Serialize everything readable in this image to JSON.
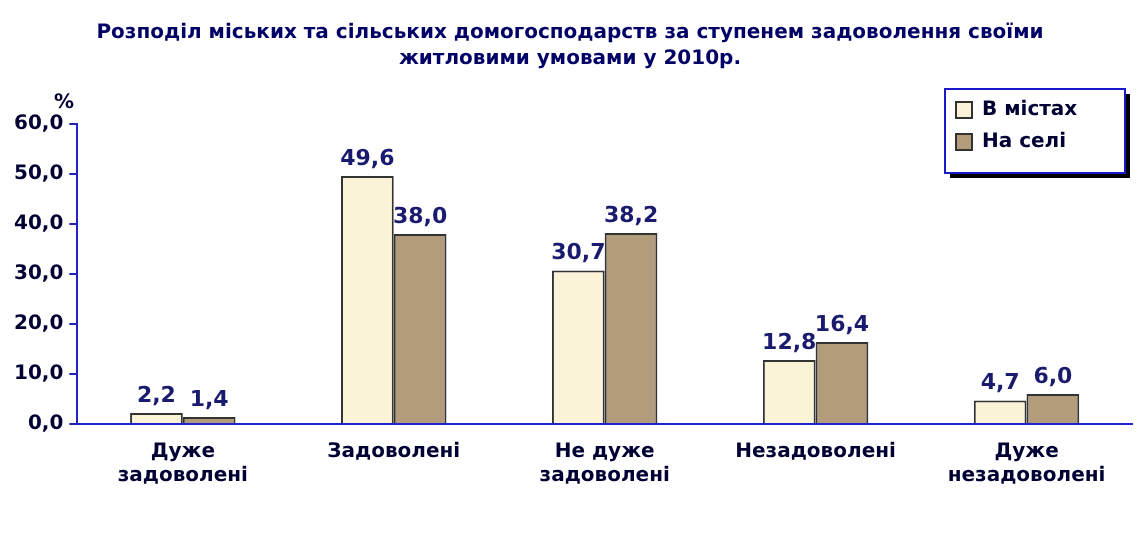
{
  "chart_data": {
    "type": "bar",
    "title": "Розподіл міських та сільських домогосподарств за ступенем задоволення своїми житловими умовами у 2010р.",
    "ylabel": "%",
    "categories": [
      "Дуже задоволені",
      "Задоволені",
      "Не дуже задоволені",
      "Незадоволені",
      "Дуже незадоволені"
    ],
    "series": [
      {
        "name": "В містах",
        "color": "#fbf3d8",
        "values": [
          2.2,
          49.6,
          30.7,
          12.8,
          4.7
        ],
        "value_labels": [
          "2,2",
          "49,6",
          "30,7",
          "12,8",
          "4,7"
        ]
      },
      {
        "name": "На селі",
        "color": "#b39c7c",
        "values": [
          1.4,
          38.0,
          38.2,
          16.4,
          6.0
        ],
        "value_labels": [
          "1,4",
          "38,0",
          "38,2",
          "16,4",
          "6,0"
        ]
      }
    ],
    "ylim": [
      0,
      60
    ],
    "yticks": [
      {
        "value": 0,
        "label": "0,0"
      },
      {
        "value": 10,
        "label": "10,0"
      },
      {
        "value": 20,
        "label": "20,0"
      },
      {
        "value": 30,
        "label": "30,0"
      },
      {
        "value": 40,
        "label": "40,0"
      },
      {
        "value": 50,
        "label": "50,0"
      },
      {
        "value": 60,
        "label": "60,0"
      }
    ],
    "grid": false,
    "legend": "top right"
  }
}
